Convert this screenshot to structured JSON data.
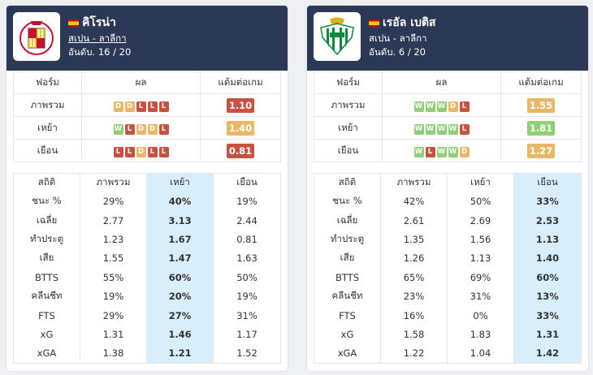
{
  "teams": [
    {
      "name": "คิโรน่า",
      "league": "สเปน - ลาลีกา",
      "rank": "อันดับ. 16 / 20",
      "form_header": [
        "ฟอร์ม",
        "ผล",
        "แต้มต่อเกม"
      ],
      "form_rows": [
        {
          "label": "ภาพรวม",
          "results": [
            "D",
            "D",
            "L",
            "L",
            "L"
          ],
          "ppg": "1.10",
          "ppg_color": "red"
        },
        {
          "label": "เหย้า",
          "results": [
            "W",
            "L",
            "D",
            "D",
            "L"
          ],
          "ppg": "1.40",
          "ppg_color": "orange"
        },
        {
          "label": "เยือน",
          "results": [
            "L",
            "L",
            "D",
            "L",
            "L"
          ],
          "ppg": "0.81",
          "ppg_color": "red"
        }
      ],
      "stats_header": [
        "สถิติ",
        "ภาพรวม",
        "เหย้า",
        "เยือน"
      ],
      "highlight_col": 2,
      "stats_rows": [
        [
          "ชนะ %",
          "29%",
          "40%",
          "19%"
        ],
        [
          "เฉลี่ย",
          "2.77",
          "3.13",
          "2.44"
        ],
        [
          "ทำประตู",
          "1.23",
          "1.67",
          "0.81"
        ],
        [
          "เสีย",
          "1.55",
          "1.47",
          "1.63"
        ],
        [
          "BTTS",
          "55%",
          "60%",
          "50%"
        ],
        [
          "คลีนชีท",
          "19%",
          "20%",
          "19%"
        ],
        [
          "FTS",
          "29%",
          "27%",
          "31%"
        ],
        [
          "xG",
          "1.31",
          "1.46",
          "1.17"
        ],
        [
          "xGA",
          "1.38",
          "1.21",
          "1.52"
        ]
      ]
    },
    {
      "name": "เรอัล เบติส",
      "league": "สเปน - ลาลีกา",
      "rank": "อันดับ. 6 / 20",
      "form_header": [
        "ฟอร์ม",
        "ผล",
        "แต้มต่อเกม"
      ],
      "form_rows": [
        {
          "label": "ภาพรวม",
          "results": [
            "W",
            "W",
            "W",
            "D",
            "L"
          ],
          "ppg": "1.55",
          "ppg_color": "orange"
        },
        {
          "label": "เหย้า",
          "results": [
            "W",
            "W",
            "W",
            "W",
            "L"
          ],
          "ppg": "1.81",
          "ppg_color": "green"
        },
        {
          "label": "เยือน",
          "results": [
            "W",
            "L",
            "W",
            "W",
            "D"
          ],
          "ppg": "1.27",
          "ppg_color": "orange"
        }
      ],
      "stats_header": [
        "สถิติ",
        "ภาพรวม",
        "เหย้า",
        "เยือน"
      ],
      "highlight_col": 3,
      "stats_rows": [
        [
          "ชนะ %",
          "42%",
          "50%",
          "33%"
        ],
        [
          "เฉลี่ย",
          "2.61",
          "2.69",
          "2.53"
        ],
        [
          "ทำประตู",
          "1.35",
          "1.56",
          "1.13"
        ],
        [
          "เสีย",
          "1.26",
          "1.13",
          "1.40"
        ],
        [
          "BTTS",
          "65%",
          "69%",
          "60%"
        ],
        [
          "คลีนชีท",
          "23%",
          "31%",
          "13%"
        ],
        [
          "FTS",
          "16%",
          "0%",
          "33%"
        ],
        [
          "xG",
          "1.58",
          "1.83",
          "1.31"
        ],
        [
          "xGA",
          "1.22",
          "1.04",
          "1.42"
        ]
      ]
    }
  ],
  "colors": {
    "header_bg": "#2b3856",
    "win": "#8fcf75",
    "draw": "#e9b867",
    "loss": "#c9513f",
    "highlight_bg": "#d9eefb",
    "highlight_text": "#1d6fa5"
  }
}
